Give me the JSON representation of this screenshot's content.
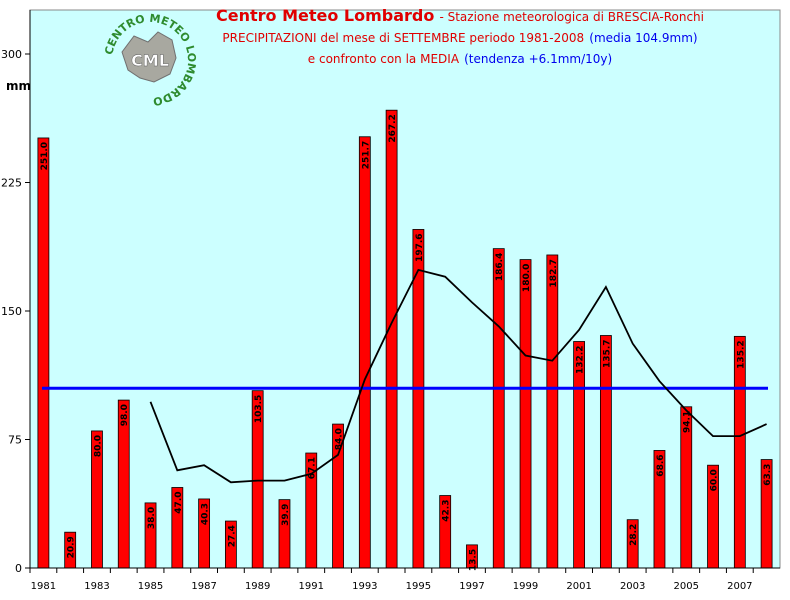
{
  "title": {
    "main": "Centro Meteo Lombardo",
    "station": "- Stazione meteorologica di BRESCIA-Ronchi",
    "line2": "PRECIPITAZIONI del mese di SETTEMBRE periodo 1981-2008",
    "line2_blue": "(media 104.9mm)",
    "line3": "e confronto con la MEDIA",
    "line3_blue": "(tendenza +6.1mm/10y)"
  },
  "logo": {
    "ring_text": "CENTRO METEO LOMBARDO",
    "center_text": "CML"
  },
  "chart_data": {
    "type": "bar",
    "ylabel": "mm",
    "ylim": [
      0,
      300
    ],
    "yticks": [
      0,
      75,
      150,
      225,
      300
    ],
    "xtick_labels": [
      "1981",
      "1983",
      "1985",
      "1987",
      "1989",
      "1991",
      "1993",
      "1995",
      "1997",
      "1999",
      "2001",
      "2003",
      "2005",
      "2007"
    ],
    "categories": [
      "1981",
      "1982",
      "1983",
      "1984",
      "1985",
      "1986",
      "1987",
      "1988",
      "1989",
      "1990",
      "1991",
      "1992",
      "1993",
      "1994",
      "1995",
      "1996",
      "1997",
      "1998",
      "1999",
      "2000",
      "2001",
      "2002",
      "2003",
      "2004",
      "2005",
      "2006",
      "2007",
      "2008"
    ],
    "values": [
      251.0,
      20.9,
      80.0,
      98.0,
      38.0,
      47.0,
      40.3,
      27.4,
      103.5,
      39.9,
      67.1,
      84.0,
      251.7,
      267.2,
      197.6,
      42.3,
      13.5,
      186.4,
      180.0,
      182.7,
      132.2,
      135.7,
      28.2,
      68.6,
      94.1,
      60.0,
      135.2,
      63.3
    ],
    "value_labels": [
      "251.0",
      "20.9",
      "80.0",
      "98.0",
      "38.0",
      "47.0",
      "40.3",
      "27.4",
      "103.5",
      "39.9",
      "67.1",
      "84.0",
      "251.7",
      "267.2",
      "197.6",
      "42.3",
      "13.5",
      "186.4",
      "180.0",
      "182.7",
      "132.2",
      "135.7",
      "28.2",
      "68.6",
      "94.1",
      "60.0",
      "135.2",
      "63.3"
    ],
    "mean_line": {
      "value": 104.9
    },
    "moving_average": {
      "x": [
        "1985",
        "1986",
        "1987",
        "1988",
        "1989",
        "1990",
        "1991",
        "1992",
        "1993",
        "1994",
        "1995",
        "1996",
        "1997",
        "1998",
        "1999",
        "2000",
        "2001",
        "2002",
        "2003",
        "2004",
        "2005",
        "2006",
        "2007",
        "2008"
      ],
      "y": [
        97,
        57,
        60,
        50,
        51,
        51,
        55,
        66,
        110,
        143,
        174,
        170,
        155,
        141,
        124,
        121,
        139,
        164,
        131,
        109,
        92,
        77,
        77,
        84
      ]
    },
    "grid": false,
    "colors": {
      "bars": "#ff0000",
      "bar_edge": "#000000",
      "mean": "#0000ff",
      "moving_average": "#000000",
      "plot_bg": "#ccffff"
    }
  }
}
